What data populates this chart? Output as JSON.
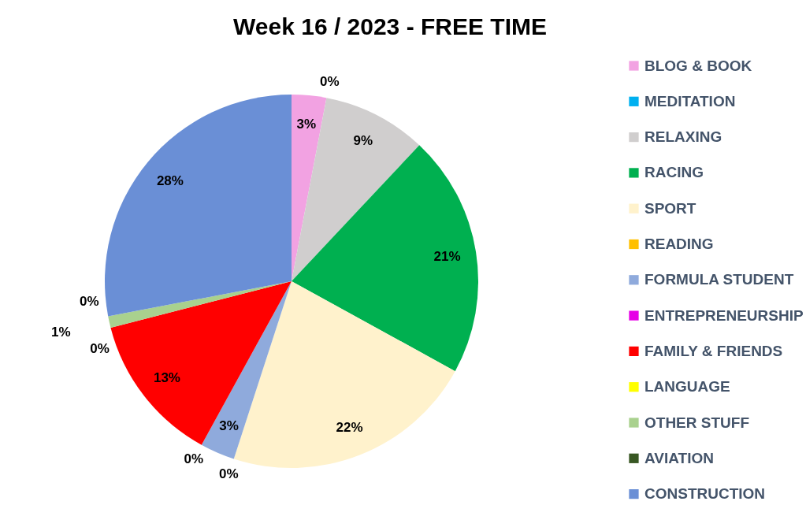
{
  "chart_data": {
    "type": "pie",
    "title": "Week 16 / 2023 - FREE TIME",
    "categories": [
      "BLOG & BOOK",
      "MEDITATION",
      "RELAXING",
      "RACING",
      "SPORT",
      "READING",
      "FORMULA STUDENT",
      "ENTREPRENEURSHIP",
      "FAMILY & FRIENDS",
      "LANGUAGE",
      "OTHER STUFF",
      "AVIATION",
      "CONSTRUCTION"
    ],
    "values": [
      3,
      0,
      9,
      21,
      22,
      0,
      3,
      0,
      13,
      0,
      1,
      0,
      28
    ],
    "value_labels": [
      "3%",
      "0%",
      "9%",
      "21%",
      "22%",
      "0%",
      "3%",
      "0%",
      "13%",
      "0%",
      "1%",
      "0%",
      "28%"
    ],
    "colors": [
      "#f2a2e2",
      "#00b0f0",
      "#d0cece",
      "#00b050",
      "#fff2cc",
      "#ffc000",
      "#8faadc",
      "#e600e6",
      "#ff0000",
      "#ffff00",
      "#a9d18e",
      "#385723",
      "#6a8fd6"
    ],
    "legend": "right"
  }
}
